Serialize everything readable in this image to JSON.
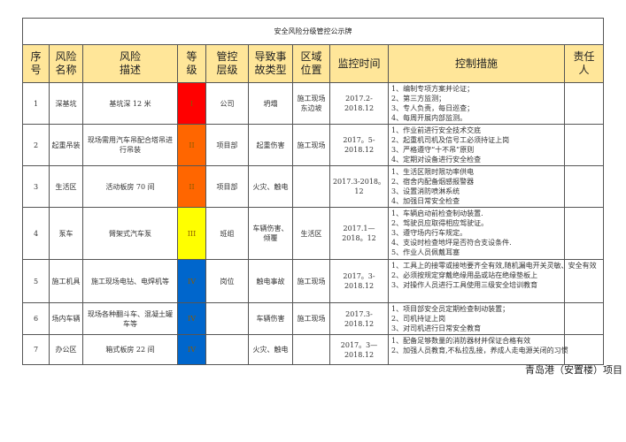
{
  "title": "安全风险分级管控公示牌",
  "headers": [
    "序 号",
    "风险\n名称",
    "风险\n描述",
    "等\n级",
    "管控\n层级",
    "导致事\n故类型",
    "区域\n位置",
    "监控时间",
    "控制措施",
    "责任\n人"
  ],
  "level_colors": {
    "I": "#FF0000",
    "II": "#FF6600",
    "III": "#FFFF00",
    "IV": "#0066CC"
  },
  "rows": [
    {
      "no": "1",
      "name": "深基坑",
      "desc": "基坑深 12 米",
      "level": "I",
      "layer": "公司",
      "accident": "坍塌",
      "area": "施工现场东边坡",
      "time": "2017.2-2018.12",
      "measures": [
        "1、编制专项方案并论证；",
        "2、第三方监测；",
        "3、专人负责，每日巡查；",
        "4、每周开展内部监测。"
      ],
      "person": ""
    },
    {
      "no": "2",
      "name": "起重吊装",
      "desc": "现场需用汽车吊配合塔吊进行吊装",
      "level": "II",
      "layer": "项目部",
      "accident": "起重伤害",
      "area": "施工现场",
      "time": "2017。5-2018.12",
      "measures": [
        "1、作业前进行安全技术交底",
        "2、起重机司机及信号工必须持证上岗",
        "3、严格遵守“十不吊”原则",
        "4、定期对设备进行安全检查"
      ],
      "person": ""
    },
    {
      "no": "3",
      "name": "生活区",
      "desc": "活动板房 70 间",
      "level": "II",
      "layer": "项目部",
      "accident": "火灾、触电",
      "area": "",
      "time": "2017.3-2018。12",
      "measures": [
        "1、生活区限时限功率供电",
        "2、宿舍内配备烟感报警器",
        "3、设置消防喷淋系统",
        "4、加强日常安全检查"
      ],
      "person": ""
    },
    {
      "no": "4",
      "name": "泵车",
      "desc": "臂架式汽车泵",
      "level": "III",
      "layer": "班组",
      "accident": "车辆伤害、倾覆",
      "area": "生活区",
      "time": "2017.1—2018。12",
      "measures": [
        "1、车辆启动前检查制动装置.",
        "2、驾驶员应取得相应驾驶证。",
        "3、遵守场内行车规定。",
        "4、支设时检查地坪是否符合支设条件.",
        "5、作业人员佩戴耳塞"
      ],
      "person": ""
    },
    {
      "no": "5",
      "name": "施工机具",
      "desc": "施工现场电钻、电焊机等",
      "level": "IV",
      "layer": "岗位",
      "accident": "触电事故",
      "area": "施工现场",
      "time": "2017。3-2018.12",
      "measures": [
        "1、工具上的接零或接地要齐全有效,随机漏电开关灵敏、安全有效",
        "2、必须按规定穿戴绝缘用品或站在绝缘垫板上",
        "3、对操作人员进行工具使用三级安全培训教育"
      ],
      "person": ""
    },
    {
      "no": "6",
      "name": "场内车辆",
      "desc": "现场各种翻斗车、混凝土罐车等",
      "level": "IV",
      "layer": "",
      "accident": "车辆伤害",
      "area": "施工现场",
      "time": "2017.3-2018.12",
      "measures": [
        "1、项目部安全员定期检查制动装置；",
        "2、司机持证上岗",
        "3、对司机进行日常安全教育"
      ],
      "person": ""
    },
    {
      "no": "7",
      "name": "办公区",
      "desc": "箱式板房 22 间",
      "level": "IV",
      "layer": "",
      "accident": "火灾、触电",
      "area": "",
      "time": "2017。3—2018.12",
      "measures": [
        "1、配备足够数量的消防器材并保证合格有效",
        "2、加强人员教育,不私拉乱接，养成人走电源关闭的习惯"
      ],
      "person": ""
    }
  ],
  "footer": "青岛港（安置楼）项目"
}
